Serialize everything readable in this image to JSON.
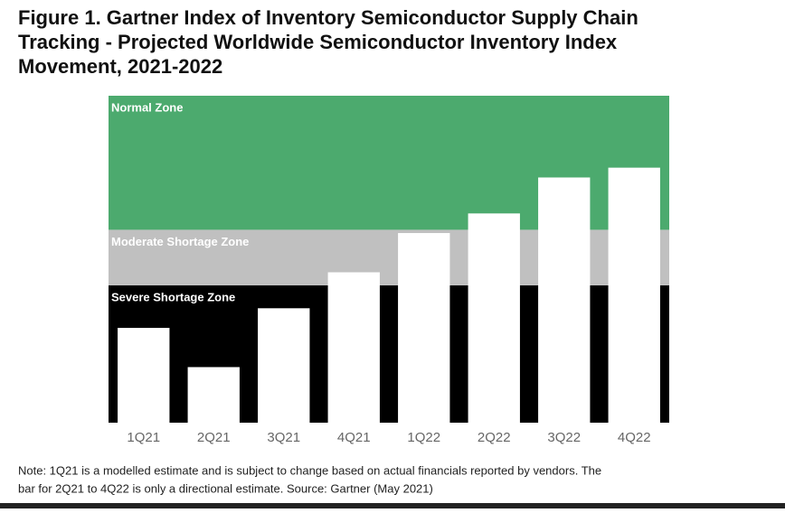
{
  "chart_data": {
    "type": "bar",
    "title_lines": [
      "Figure 1. Gartner Index of Inventory Semiconductor Supply Chain",
      "Tracking - Projected Worldwide Semiconductor Inventory Index",
      "Movement, 2021-2022"
    ],
    "categories": [
      "1Q21",
      "2Q21",
      "3Q21",
      "4Q21",
      "1Q22",
      "2Q22",
      "3Q22",
      "4Q22"
    ],
    "values": [
      29,
      17,
      35,
      46,
      58,
      64,
      75,
      78
    ],
    "color": "#ffffff",
    "ylim": [
      0,
      100
    ],
    "zones": [
      {
        "name": "Severe Shortage Zone",
        "from": 0,
        "to": 42,
        "color": "#000000"
      },
      {
        "name": "Moderate Shortage Zone",
        "from": 42,
        "to": 59,
        "color": "#c0c0c0"
      },
      {
        "name": "Normal Zone",
        "from": 59,
        "to": 100,
        "color": "#4caa6e"
      }
    ],
    "note_lines": [
      "Note: 1Q21 is a modelled estimate and is subject to change based on actual financials reported by vendors. The",
      "bar for 2Q21 to 4Q22 is only a directional estimate. Source: Gartner (May 2021)"
    ]
  }
}
